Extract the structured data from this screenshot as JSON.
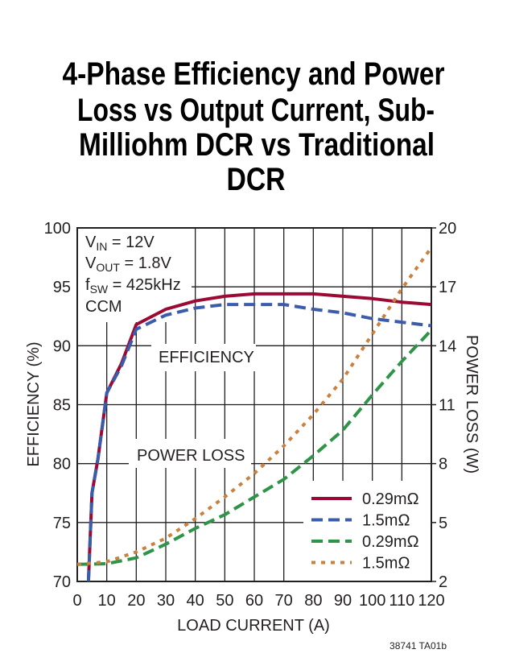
{
  "chart_data": {
    "type": "line",
    "title": [
      "4-Phase Efficiency and Power",
      "Loss vs Output Current, Sub-",
      "Milliohm DCR vs Traditional",
      "DCR"
    ],
    "xlabel": "LOAD CURRENT (A)",
    "ylabel": "EFFICIENCY (%)",
    "y2label": "POWER LOSS (W)",
    "xlim": [
      0,
      120
    ],
    "ylim": [
      70,
      100
    ],
    "y2lim": [
      2,
      20
    ],
    "xticks": [
      "0",
      "10",
      "20",
      "30",
      "40",
      "50",
      "60",
      "70",
      "80",
      "90",
      "100",
      "110",
      "120"
    ],
    "yticks": [
      "70",
      "75",
      "80",
      "85",
      "90",
      "95",
      "100"
    ],
    "y2ticks": [
      "2",
      "5",
      "8",
      "11",
      "14",
      "17",
      "20"
    ],
    "grid": true,
    "legend_placement": "bottom-right",
    "conditions": {
      "vin": [
        "V",
        "IN",
        " = 12V"
      ],
      "vout": [
        "V",
        "OUT",
        " = 1.8V"
      ],
      "fsw": [
        "f",
        "SW",
        " = 425kHz"
      ],
      "mode": "CCM"
    },
    "annotations": {
      "efficiency": "EFFICIENCY",
      "power_loss": "POWER LOSS"
    },
    "series": [
      {
        "name": "0.29mΩ",
        "axis": "left",
        "style": "solid",
        "color": "#9b0a34",
        "x": [
          3.8,
          5,
          7,
          10,
          15,
          20,
          30,
          40,
          50,
          60,
          70,
          80,
          90,
          100,
          110,
          120
        ],
        "y": [
          70,
          77.5,
          80.4,
          86.0,
          88.5,
          91.8,
          93.1,
          93.8,
          94.2,
          94.4,
          94.4,
          94.4,
          94.2,
          94.0,
          93.7,
          93.5
        ]
      },
      {
        "name": "1.5mΩ",
        "axis": "left",
        "style": "dash",
        "color": "#3b5bab",
        "x": [
          3.8,
          5,
          7,
          10,
          15,
          20,
          30,
          40,
          50,
          60,
          70,
          80,
          90,
          100,
          110,
          120
        ],
        "y": [
          70,
          77.5,
          80.4,
          86.0,
          88.3,
          91.4,
          92.6,
          93.2,
          93.5,
          93.5,
          93.5,
          93.1,
          92.8,
          92.3,
          92.0,
          91.7
        ]
      },
      {
        "name": "0.29mΩ",
        "axis": "right",
        "style": "dash",
        "color": "#2e9447",
        "x": [
          0,
          10,
          20,
          30,
          40,
          50,
          60,
          70,
          80,
          90,
          100,
          110,
          120
        ],
        "y": [
          2.87,
          2.9,
          3.2,
          3.9,
          4.7,
          5.4,
          6.3,
          7.2,
          8.4,
          9.7,
          11.5,
          13.2,
          14.8
        ]
      },
      {
        "name": "1.5mΩ",
        "axis": "right",
        "style": "dot",
        "color": "#c8813f",
        "x": [
          0,
          10,
          20,
          30,
          40,
          50,
          60,
          70,
          80,
          90,
          100,
          110,
          120
        ],
        "y": [
          2.87,
          3.0,
          3.5,
          4.2,
          5.2,
          6.3,
          7.5,
          8.9,
          10.5,
          12.3,
          14.6,
          16.9,
          19.0
        ]
      }
    ],
    "footnote": "38741 TA01b"
  }
}
